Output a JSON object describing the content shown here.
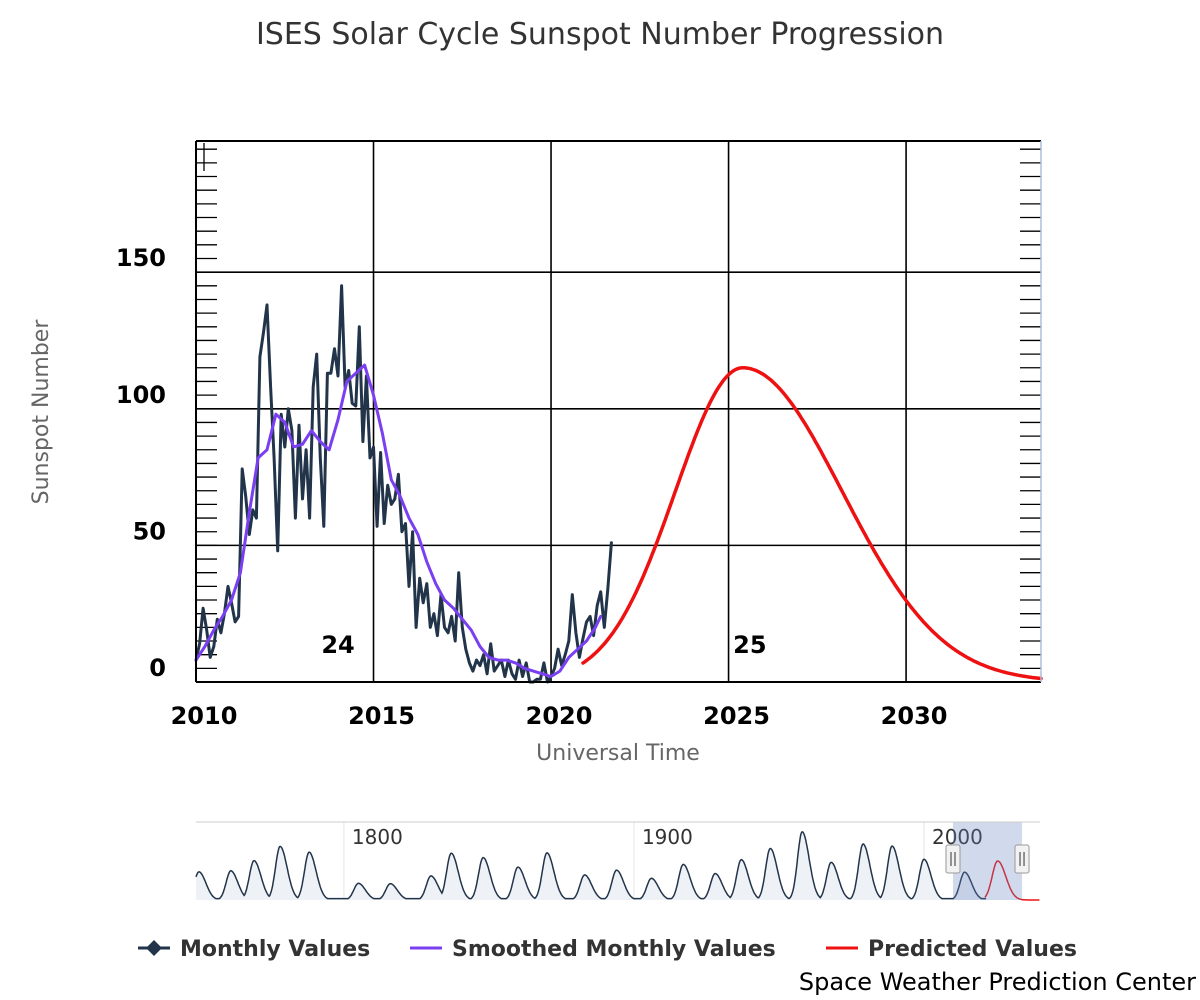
{
  "chart_data": {
    "type": "line",
    "title": "ISES Solar Cycle Sunspot Number Progression",
    "xlabel": "Universal Time",
    "ylabel": "Sunspot Number",
    "xlim": [
      2010,
      2033.8
    ],
    "ylim": [
      0,
      198
    ],
    "x_ticks": [
      2010,
      2015,
      2020,
      2025,
      2030
    ],
    "x_tick_labels": [
      "2010",
      "2015",
      "2020",
      "2025",
      "2030"
    ],
    "y_ticks": [
      0,
      50,
      100,
      150
    ],
    "y_tick_labels": [
      "0",
      "50",
      "100",
      "150"
    ],
    "grid": true,
    "cycle_labels": [
      {
        "text": "24",
        "x": 2014.0,
        "y": 12
      },
      {
        "text": "25",
        "x": 2025.6,
        "y": 12
      }
    ],
    "series": [
      {
        "name": "Monthly Values",
        "color": "#22344a",
        "x": [
          2010.0,
          2010.1,
          2010.2,
          2010.3,
          2010.4,
          2010.5,
          2010.6,
          2010.7,
          2010.8,
          2010.9,
          2011.0,
          2011.1,
          2011.2,
          2011.3,
          2011.4,
          2011.5,
          2011.6,
          2011.7,
          2011.8,
          2011.9,
          2012.0,
          2012.1,
          2012.2,
          2012.3,
          2012.4,
          2012.5,
          2012.6,
          2012.7,
          2012.8,
          2012.9,
          2013.0,
          2013.1,
          2013.2,
          2013.3,
          2013.4,
          2013.5,
          2013.6,
          2013.7,
          2013.8,
          2013.9,
          2014.0,
          2014.1,
          2014.2,
          2014.3,
          2014.4,
          2014.5,
          2014.6,
          2014.7,
          2014.8,
          2014.9,
          2015.0,
          2015.1,
          2015.2,
          2015.3,
          2015.4,
          2015.5,
          2015.6,
          2015.7,
          2015.8,
          2015.9,
          2016.0,
          2016.1,
          2016.2,
          2016.3,
          2016.4,
          2016.5,
          2016.6,
          2016.7,
          2016.8,
          2016.9,
          2017.0,
          2017.1,
          2017.2,
          2017.3,
          2017.4,
          2017.5,
          2017.6,
          2017.7,
          2017.8,
          2017.9,
          2018.0,
          2018.1,
          2018.2,
          2018.3,
          2018.4,
          2018.5,
          2018.6,
          2018.7,
          2018.8,
          2018.9,
          2019.0,
          2019.1,
          2019.2,
          2019.3,
          2019.4,
          2019.5,
          2019.6,
          2019.7,
          2019.8,
          2019.9,
          2020.0,
          2020.1,
          2020.2,
          2020.3,
          2020.4,
          2020.5,
          2020.6,
          2020.7,
          2020.8,
          2020.9,
          2021.0,
          2021.1,
          2021.2,
          2021.3,
          2021.4,
          2021.5,
          2021.6,
          2021.7
        ],
        "values": [
          8,
          14,
          27,
          19,
          9,
          13,
          23,
          18,
          25,
          35,
          29,
          22,
          24,
          78,
          68,
          54,
          63,
          60,
          119,
          128,
          138,
          108,
          82,
          48,
          98,
          86,
          100,
          92,
          60,
          94,
          67,
          85,
          60,
          108,
          120,
          82,
          57,
          113,
          113,
          122,
          112,
          145,
          108,
          114,
          102,
          101,
          130,
          88,
          112,
          82,
          86,
          57,
          84,
          58,
          72,
          65,
          67,
          76,
          55,
          58,
          35,
          55,
          20,
          38,
          29,
          36,
          20,
          25,
          17,
          32,
          20,
          18,
          24,
          15,
          40,
          20,
          12,
          7,
          4,
          8,
          6,
          10,
          3,
          14,
          4,
          6,
          8,
          2,
          8,
          3,
          1,
          8,
          2,
          7,
          0,
          0,
          1,
          1,
          7,
          0,
          2,
          5,
          12,
          6,
          10,
          15,
          32,
          18,
          9,
          16,
          22,
          24,
          17,
          28,
          33,
          20,
          34,
          51
        ]
      },
      {
        "name": "Smoothed Monthly Values",
        "color": "#7b3ff2",
        "x": [
          2010.0,
          2010.25,
          2010.5,
          2010.75,
          2011.0,
          2011.25,
          2011.5,
          2011.75,
          2012.0,
          2012.25,
          2012.5,
          2012.75,
          2013.0,
          2013.25,
          2013.5,
          2013.75,
          2014.0,
          2014.25,
          2014.5,
          2014.75,
          2015.0,
          2015.25,
          2015.5,
          2015.75,
          2016.0,
          2016.25,
          2016.5,
          2016.75,
          2017.0,
          2017.25,
          2017.5,
          2017.75,
          2018.0,
          2018.25,
          2018.5,
          2018.75,
          2019.0,
          2019.25,
          2019.5,
          2019.75,
          2020.0,
          2020.25,
          2020.5,
          2020.75,
          2021.0,
          2021.25,
          2021.4
        ],
        "values": [
          8,
          13,
          19,
          24,
          30,
          40,
          62,
          82,
          85,
          98,
          95,
          86,
          87,
          92,
          88,
          85,
          96,
          110,
          113,
          116,
          105,
          91,
          74,
          68,
          60,
          54,
          44,
          36,
          30,
          27,
          23,
          19,
          13,
          9,
          8,
          8,
          7,
          5,
          4,
          3,
          2,
          4,
          9,
          12,
          15,
          20,
          24
        ]
      },
      {
        "name": "Predicted Values",
        "color": "#ee1111",
        "curve": {
          "model": "gaussian",
          "start_x": 2020.9,
          "end_x": 2033.8,
          "peak_x": 2025.4,
          "peak_y": 115,
          "sigma_left": 1.9,
          "sigma_right": 2.8
        }
      }
    ],
    "legend": {
      "position": "bottom",
      "items": [
        "Monthly Values",
        "Smoothed Monthly Values",
        "Predicted Values"
      ]
    },
    "navigator": {
      "xlim": [
        1749,
        2040
      ],
      "labels": [
        {
          "text": "1800",
          "x": 1800
        },
        {
          "text": "1900",
          "x": 1900
        },
        {
          "text": "2000",
          "x": 2000
        }
      ],
      "selection": [
        2010,
        2033.8
      ],
      "cycle_peaks": [
        [
          1750,
          83
        ],
        [
          1761,
          86
        ],
        [
          1769,
          116
        ],
        [
          1778,
          158
        ],
        [
          1788,
          141
        ],
        [
          1805,
          49
        ],
        [
          1816,
          48
        ],
        [
          1830,
          71
        ],
        [
          1837,
          138
        ],
        [
          1848,
          125
        ],
        [
          1860,
          97
        ],
        [
          1870,
          139
        ],
        [
          1883,
          74
        ],
        [
          1894,
          88
        ],
        [
          1906,
          64
        ],
        [
          1917,
          105
        ],
        [
          1928,
          78
        ],
        [
          1937,
          119
        ],
        [
          1947,
          152
        ],
        [
          1958,
          201
        ],
        [
          1968,
          111
        ],
        [
          1979,
          165
        ],
        [
          1989,
          159
        ],
        [
          2000,
          120
        ],
        [
          2014,
          82
        ],
        [
          2025.4,
          115
        ]
      ]
    },
    "credit": "Space Weather Prediction Center"
  }
}
